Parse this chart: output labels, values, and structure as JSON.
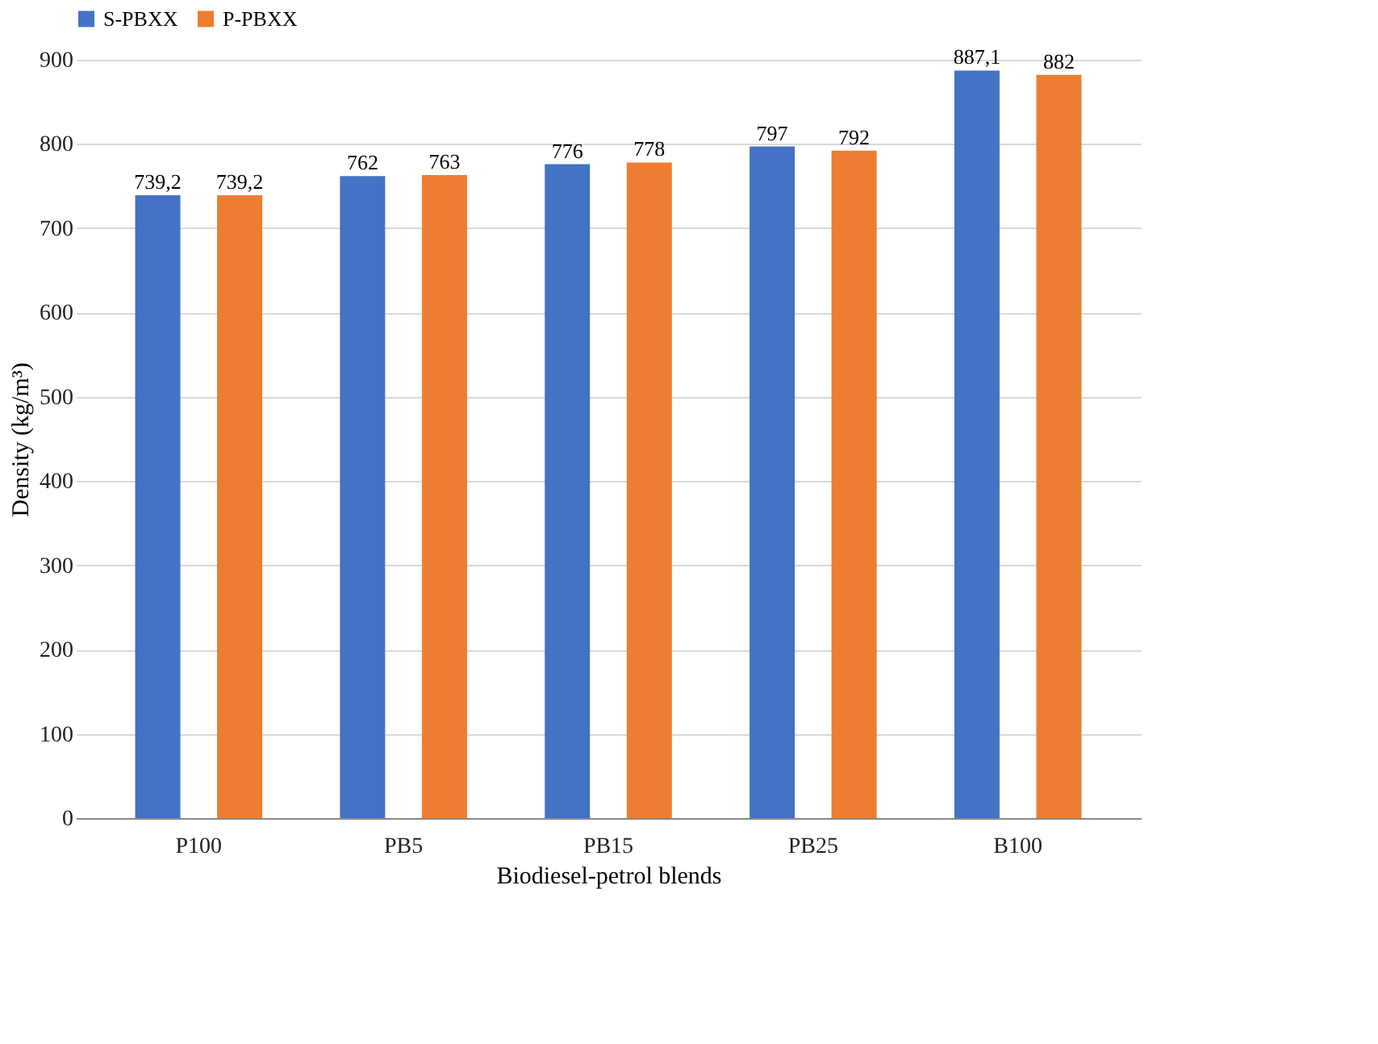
{
  "chart_data": {
    "type": "bar",
    "xlabel": "Biodiesel-petrol blends",
    "ylabel": "Density (kg/m³)",
    "categories": [
      "P100",
      "PB5",
      "PB15",
      "PB25",
      "B100"
    ],
    "series": [
      {
        "name": "S-PBXX",
        "color": "#4472c4",
        "values": [
          739.2,
          762,
          776,
          797,
          887.1
        ],
        "value_labels": [
          "739,2",
          "762",
          "776",
          "797",
          "887,1"
        ]
      },
      {
        "name": "P-PBXX",
        "color": "#ed7d31",
        "values": [
          739.2,
          763,
          778,
          792,
          882
        ],
        "value_labels": [
          "739,2",
          "763",
          "778",
          "792",
          "882"
        ]
      }
    ],
    "ylim": [
      0,
      900
    ],
    "yticks": [
      0,
      100,
      200,
      300,
      400,
      500,
      600,
      700,
      800,
      900
    ],
    "grid": "y",
    "legend": "top"
  }
}
